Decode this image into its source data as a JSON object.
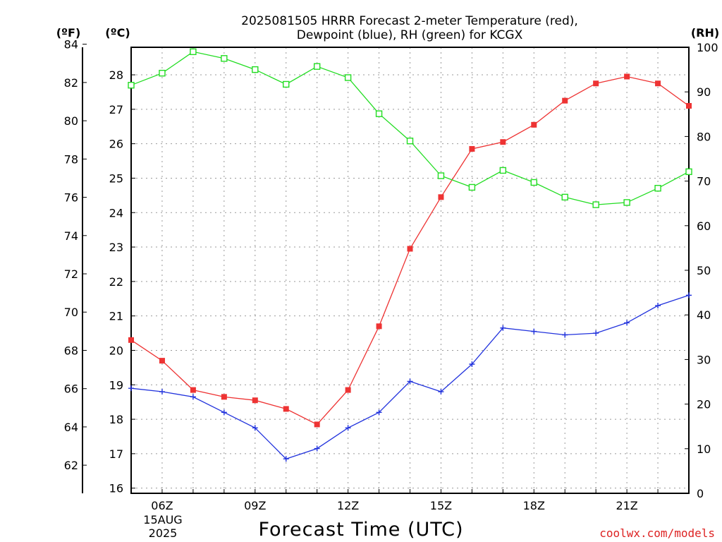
{
  "title": {
    "line1": "2025081505 HRRR Forecast 2-meter Temperature (red),",
    "line2": "Dewpoint (blue), RH (green) for KCGX"
  },
  "axis_units": {
    "fahrenheit": "(ºF)",
    "celsius": "(ºC)",
    "rh": "(RH)"
  },
  "xlabel": "Forecast Time (UTC)",
  "date_label": {
    "line1": "15AUG",
    "line2": "2025"
  },
  "watermark": "coolwx.com/models",
  "chart_data": {
    "type": "line",
    "x": [
      "05Z",
      "06Z",
      "07Z",
      "08Z",
      "09Z",
      "10Z",
      "11Z",
      "12Z",
      "13Z",
      "14Z",
      "15Z",
      "16Z",
      "17Z",
      "18Z",
      "19Z",
      "20Z",
      "21Z",
      "22Z",
      "23Z"
    ],
    "x_ticks": [
      {
        "label": "06Z",
        "index": 1
      },
      {
        "label": "09Z",
        "index": 4
      },
      {
        "label": "12Z",
        "index": 7
      },
      {
        "label": "15Z",
        "index": 10
      },
      {
        "label": "18Z",
        "index": 13
      },
      {
        "label": "21Z",
        "index": 16
      }
    ],
    "left_axis_c": {
      "range": [
        15.85,
        28.8
      ],
      "ticks": [
        16,
        17,
        18,
        19,
        20,
        21,
        22,
        23,
        24,
        25,
        26,
        27,
        28
      ]
    },
    "left_axis_f": {
      "range": [
        60.53,
        83.84
      ],
      "ticks": [
        62,
        64,
        66,
        68,
        70,
        72,
        74,
        76,
        78,
        80,
        82,
        84
      ]
    },
    "right_axis_rh": {
      "range": [
        0,
        100
      ],
      "ticks": [
        0,
        10,
        20,
        30,
        40,
        50,
        60,
        70,
        80,
        90,
        100
      ]
    },
    "series": [
      {
        "name": "Temperature",
        "color": "#ee3333",
        "axis": "celsius",
        "marker": "filled-square",
        "values": [
          20.3,
          19.7,
          18.85,
          18.65,
          18.55,
          18.3,
          17.85,
          18.85,
          20.7,
          22.95,
          24.45,
          25.85,
          26.05,
          26.55,
          27.25,
          27.75,
          27.95,
          27.75,
          27.1
        ]
      },
      {
        "name": "Dewpoint",
        "color": "#2233dd",
        "axis": "celsius",
        "marker": "plus",
        "values": [
          18.9,
          18.8,
          18.65,
          18.2,
          17.75,
          16.85,
          17.15,
          17.75,
          18.2,
          19.1,
          18.8,
          19.6,
          20.65,
          20.55,
          20.45,
          20.5,
          20.8,
          21.3,
          21.6
        ]
      },
      {
        "name": "RH",
        "color": "#22dd22",
        "axis": "rh",
        "marker": "open-square",
        "values": [
          91.5,
          94.2,
          99.0,
          97.5,
          95.0,
          91.7,
          95.7,
          93.2,
          85.1,
          79.0,
          71.2,
          68.6,
          72.4,
          69.7,
          66.4,
          64.7,
          65.2,
          68.4,
          72.1
        ]
      }
    ],
    "grid": true,
    "legend": "none"
  }
}
